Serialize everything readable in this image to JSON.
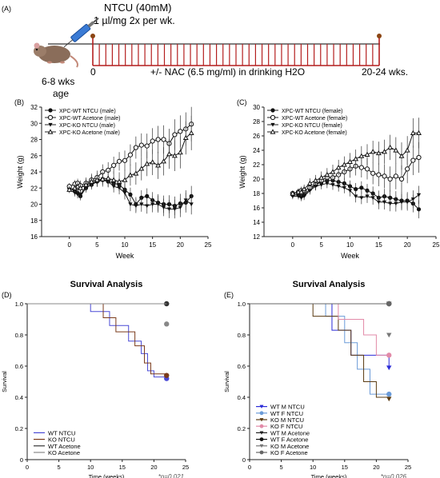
{
  "panel_a": {
    "letter": "(A)",
    "treatment": "NTCU (40mM)",
    "dose": "1 µl/mg 2x per wk.",
    "age": "6-8 wks\nage",
    "age_line1": "6-8 wks",
    "age_line2": "age",
    "start": "0",
    "nac": "+/- NAC (6.5 mg/ml) in drinking H2O",
    "end": "20-24 wks.",
    "tick_count": 44
  },
  "chart_data": [
    {
      "id": "B",
      "type": "line",
      "panel_label": "(B)",
      "xlabel": "Week",
      "ylabel": "Weight (g)",
      "xlim": [
        -5,
        25
      ],
      "ylim": [
        16,
        32
      ],
      "xticks": [
        0,
        5,
        10,
        15,
        20,
        25
      ],
      "yticks": [
        16,
        18,
        20,
        22,
        24,
        26,
        28,
        30,
        32
      ],
      "legend": "top-left",
      "x": [
        0,
        1,
        1.5,
        2,
        3,
        4,
        5,
        6,
        7,
        8,
        9,
        10,
        11,
        12,
        13,
        14,
        15,
        16,
        17,
        18,
        19,
        20,
        21,
        22
      ],
      "series": [
        {
          "name": "XPC-WT NTCU (male)",
          "marker": "circle-filled",
          "color": "#111111",
          "values": [
            22.0,
            21.6,
            21.4,
            21.0,
            22.0,
            22.4,
            22.8,
            23.0,
            22.8,
            22.6,
            22.4,
            21.8,
            21.2,
            20.0,
            20.8,
            21.0,
            20.5,
            20.2,
            20.0,
            20.0,
            19.8,
            20.1,
            20.2,
            21.0
          ]
        },
        {
          "name": "XPC-WT Acetone (male)",
          "marker": "circle-open",
          "color": "#111111",
          "values": [
            22.2,
            22.5,
            22.6,
            22.3,
            22.6,
            23.0,
            23.3,
            24.0,
            24.2,
            24.8,
            25.3,
            25.4,
            26.1,
            27.0,
            27.3,
            27.2,
            27.8,
            28.0,
            28.0,
            27.5,
            28.6,
            29.0,
            29.3,
            29.9
          ]
        },
        {
          "name": "XPC-KO NTCU (male)",
          "marker": "triangle-down-filled",
          "color": "#111111",
          "values": [
            21.8,
            21.4,
            21.2,
            21.2,
            22.2,
            22.6,
            22.8,
            23.1,
            22.8,
            22.2,
            22.0,
            21.4,
            20.0,
            19.8,
            20.0,
            19.8,
            20.0,
            20.0,
            19.6,
            19.4,
            19.4,
            19.6,
            20.5,
            20.0
          ]
        },
        {
          "name": "XPC-KO Acetone (male)",
          "marker": "triangle-up-open",
          "color": "#111111",
          "values": [
            21.8,
            22.0,
            22.2,
            22.0,
            22.4,
            22.8,
            23.0,
            23.1,
            23.2,
            23.0,
            22.8,
            23.0,
            23.6,
            23.8,
            24.4,
            25.0,
            25.2,
            24.8,
            25.3,
            26.2,
            26.0,
            26.4,
            28.2,
            28.8
          ]
        }
      ]
    },
    {
      "id": "C",
      "type": "line",
      "panel_label": "(C)",
      "xlabel": "Week",
      "ylabel": "Weight (g)",
      "xlim": [
        -5,
        25
      ],
      "ylim": [
        12,
        30
      ],
      "xticks": [
        0,
        5,
        10,
        15,
        20,
        25
      ],
      "yticks": [
        12,
        14,
        16,
        18,
        20,
        22,
        24,
        26,
        28,
        30
      ],
      "legend": "top-left",
      "x": [
        0,
        1,
        1.5,
        2,
        3,
        4,
        5,
        6,
        7,
        8,
        9,
        10,
        11,
        12,
        13,
        14,
        15,
        16,
        17,
        18,
        19,
        20,
        21,
        22
      ],
      "series": [
        {
          "name": "XPC-WT NTCU (female)",
          "marker": "circle-filled",
          "color": "#111111",
          "values": [
            17.8,
            17.8,
            17.6,
            17.8,
            18.6,
            19.2,
            19.6,
            19.8,
            19.8,
            19.6,
            19.4,
            19.0,
            18.6,
            18.8,
            18.4,
            18.0,
            17.4,
            17.6,
            17.4,
            17.2,
            17.0,
            17.0,
            16.6,
            15.8
          ]
        },
        {
          "name": "XPC-WT Acetone (female)",
          "marker": "circle-open",
          "color": "#111111",
          "values": [
            18.0,
            18.2,
            18.4,
            18.4,
            18.8,
            19.2,
            19.8,
            20.2,
            20.2,
            20.6,
            21.0,
            21.4,
            21.8,
            21.6,
            21.4,
            20.8,
            20.6,
            20.4,
            20.0,
            20.4,
            20.0,
            21.4,
            22.6,
            23.0
          ]
        },
        {
          "name": "XPC-KO NTCU (female)",
          "marker": "triangle-down-filled",
          "color": "#111111",
          "values": [
            17.6,
            17.6,
            17.4,
            17.6,
            18.4,
            19.0,
            19.2,
            19.4,
            19.2,
            19.0,
            18.8,
            18.4,
            17.6,
            17.4,
            17.6,
            17.4,
            16.8,
            16.8,
            16.6,
            16.6,
            16.8,
            16.8,
            17.2,
            17.8
          ]
        },
        {
          "name": "XPC-KO Acetone (female)",
          "marker": "triangle-up-open",
          "color": "#111111",
          "values": [
            18.0,
            18.2,
            18.2,
            18.6,
            19.4,
            19.8,
            20.2,
            20.6,
            21.0,
            21.6,
            22.0,
            22.4,
            22.8,
            23.2,
            23.4,
            23.8,
            23.6,
            23.8,
            24.4,
            24.0,
            23.2,
            24.0,
            26.4,
            26.4
          ]
        }
      ]
    },
    {
      "id": "D",
      "type": "line",
      "panel_label": "(D)",
      "title": "Survival Analysis",
      "xlabel": "Time (weeks)",
      "ylabel": "Survival",
      "xlim": [
        0,
        25
      ],
      "ylim": [
        0,
        1
      ],
      "xticks": [
        0,
        5,
        10,
        15,
        20,
        25
      ],
      "yticks": [
        0,
        0.2,
        0.4,
        0.6,
        0.8,
        1.0
      ],
      "legend": "bottom-left",
      "annotation": "*p=0.021",
      "series": [
        {
          "name": "WT NTCU",
          "color": "#4a4ad6",
          "marker": "circle-filled",
          "steps": [
            [
              0,
              1
            ],
            [
              10,
              1
            ],
            [
              10,
              0.95
            ],
            [
              13,
              0.95
            ],
            [
              13,
              0.86
            ],
            [
              16,
              0.86
            ],
            [
              16,
              0.76
            ],
            [
              18,
              0.76
            ],
            [
              18,
              0.68
            ],
            [
              19,
              0.68
            ],
            [
              19,
              0.57
            ],
            [
              20,
              0.57
            ],
            [
              20,
              0.53
            ],
            [
              22,
              0.53
            ]
          ],
          "end": [
            22,
            0.52
          ]
        },
        {
          "name": "KO NTCU",
          "color": "#7a3a1a",
          "marker": "circle-filled",
          "steps": [
            [
              0,
              1
            ],
            [
              12,
              1
            ],
            [
              12,
              0.91
            ],
            [
              14,
              0.91
            ],
            [
              14,
              0.82
            ],
            [
              17,
              0.82
            ],
            [
              17,
              0.73
            ],
            [
              18.5,
              0.73
            ],
            [
              18.5,
              0.62
            ],
            [
              19.5,
              0.62
            ],
            [
              19.5,
              0.55
            ],
            [
              22,
              0.55
            ]
          ],
          "end": [
            22,
            0.54
          ]
        },
        {
          "name": "WT Acetone",
          "color": "#333333",
          "marker": "circle-filled",
          "steps": [
            [
              0,
              1
            ],
            [
              22,
              1
            ]
          ],
          "end": [
            22,
            1.0
          ]
        },
        {
          "name": "KO Acetone",
          "color": "#888888",
          "marker": "circle-filled",
          "steps": [
            [
              0,
              1
            ],
            [
              22,
              1
            ]
          ],
          "end": [
            22,
            0.87
          ]
        }
      ]
    },
    {
      "id": "E",
      "type": "line",
      "panel_label": "(E)",
      "title": "Survival Analysis",
      "xlabel": "Time (weeks)",
      "ylabel": "Survival",
      "xlim": [
        0,
        25
      ],
      "ylim": [
        0,
        1
      ],
      "xticks": [
        0,
        5,
        10,
        15,
        20,
        25
      ],
      "yticks": [
        0,
        0.2,
        0.4,
        0.6,
        0.8,
        1.0
      ],
      "legend": "bottom-left",
      "annotation": "*p=0.026",
      "series": [
        {
          "name": "WT M NTCU",
          "color": "#2b2bd8",
          "marker": "triangle-down-filled",
          "steps": [
            [
              0,
              1
            ],
            [
              13,
              1
            ],
            [
              13,
              0.83
            ],
            [
              16,
              0.83
            ],
            [
              16,
              0.67
            ],
            [
              22,
              0.67
            ],
            [
              22,
              0.6
            ]
          ],
          "end": [
            22,
            0.59
          ]
        },
        {
          "name": "WT F NTCU",
          "color": "#6b9bd8",
          "marker": "circle-filled",
          "steps": [
            [
              0,
              1
            ],
            [
              12,
              1
            ],
            [
              12,
              0.92
            ],
            [
              15,
              0.92
            ],
            [
              15,
              0.75
            ],
            [
              17,
              0.75
            ],
            [
              17,
              0.58
            ],
            [
              19,
              0.58
            ],
            [
              19,
              0.42
            ],
            [
              22,
              0.42
            ]
          ],
          "end": [
            22,
            0.42
          ]
        },
        {
          "name": "KO M NTCU",
          "color": "#5a3a10",
          "marker": "triangle-down-filled",
          "steps": [
            [
              0,
              1
            ],
            [
              10,
              1
            ],
            [
              10,
              0.92
            ],
            [
              14,
              0.92
            ],
            [
              14,
              0.83
            ],
            [
              16,
              0.83
            ],
            [
              16,
              0.67
            ],
            [
              18,
              0.67
            ],
            [
              18,
              0.5
            ],
            [
              20,
              0.5
            ],
            [
              20,
              0.4
            ],
            [
              22,
              0.4
            ]
          ],
          "end": [
            22,
            0.39
          ]
        },
        {
          "name": "KO F NTCU",
          "color": "#e28aa8",
          "marker": "circle-filled",
          "steps": [
            [
              0,
              1
            ],
            [
              14,
              1
            ],
            [
              14,
              0.9
            ],
            [
              18,
              0.9
            ],
            [
              18,
              0.8
            ],
            [
              20,
              0.8
            ],
            [
              20,
              0.67
            ],
            [
              22,
              0.67
            ]
          ],
          "end": [
            22,
            0.67
          ]
        },
        {
          "name": "WT M Acetone",
          "color": "#222222",
          "marker": "triangle-down-filled",
          "steps": [
            [
              0,
              1
            ],
            [
              22,
              1
            ]
          ],
          "end": [
            22,
            1.0
          ]
        },
        {
          "name": "WT F Acetone",
          "color": "#111111",
          "marker": "circle-filled",
          "steps": [
            [
              0,
              1
            ],
            [
              22,
              1
            ]
          ],
          "end": [
            22,
            1.0
          ]
        },
        {
          "name": "KO M Acetone",
          "color": "#777777",
          "marker": "triangle-down-filled",
          "steps": [
            [
              0,
              1
            ],
            [
              22,
              1
            ]
          ],
          "end": [
            22,
            0.8
          ]
        },
        {
          "name": "KO F Acetone",
          "color": "#666666",
          "marker": "circle-filled",
          "steps": [
            [
              0,
              1
            ],
            [
              22,
              1
            ]
          ],
          "end": [
            22,
            1.0
          ]
        }
      ]
    }
  ]
}
